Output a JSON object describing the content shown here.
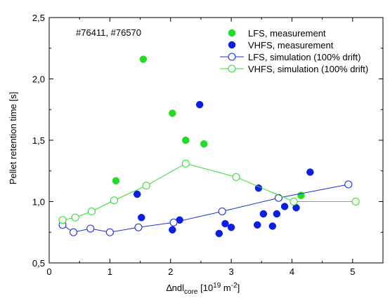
{
  "chart_data": {
    "type": "scatter",
    "annotation": "#76411, #76570",
    "xlabel": {
      "prefix": "∆ndl",
      "sub": "core",
      "mid": " [10",
      "sup1": "19",
      "mid2": " m",
      "sup2": "-2",
      "suffix": "]"
    },
    "ylabel": "Pellet retention time [s]",
    "xlim": [
      0,
      5.5
    ],
    "ylim": [
      0.5,
      2.5
    ],
    "xticks": [
      {
        "v": 0,
        "label": "0"
      },
      {
        "v": 1,
        "label": "1"
      },
      {
        "v": 2,
        "label": "2"
      },
      {
        "v": 3,
        "label": "3"
      },
      {
        "v": 4,
        "label": "4"
      },
      {
        "v": 5,
        "label": "5"
      }
    ],
    "yticks": [
      {
        "v": 0.5,
        "label": "0,5"
      },
      {
        "v": 1.0,
        "label": "1,0"
      },
      {
        "v": 1.5,
        "label": "1,5"
      },
      {
        "v": 2.0,
        "label": "2,0"
      },
      {
        "v": 2.5,
        "label": "2,5"
      }
    ],
    "legend_position": "top-right",
    "series": [
      {
        "name": "LFS, measurement",
        "kind": "filled",
        "color": "#22dd22",
        "points": [
          [
            1.1,
            1.17
          ],
          [
            1.55,
            2.16
          ],
          [
            2.03,
            1.72
          ],
          [
            2.25,
            1.5
          ],
          [
            2.55,
            1.47
          ],
          [
            4.15,
            1.05
          ]
        ]
      },
      {
        "name": "VHFS, measurement",
        "kind": "filled",
        "color": "#0a1ee6",
        "points": [
          [
            1.45,
            1.06
          ],
          [
            1.52,
            0.87
          ],
          [
            2.03,
            0.77
          ],
          [
            2.15,
            0.85
          ],
          [
            2.48,
            1.79
          ],
          [
            2.8,
            0.74
          ],
          [
            2.9,
            0.82
          ],
          [
            3.0,
            0.79
          ],
          [
            3.43,
            0.81
          ],
          [
            3.45,
            1.11
          ],
          [
            3.53,
            0.9
          ],
          [
            3.68,
            0.8
          ],
          [
            3.75,
            0.9
          ],
          [
            3.88,
            0.96
          ],
          [
            4.07,
            0.95
          ],
          [
            4.3,
            1.24
          ]
        ]
      },
      {
        "name": "LFS, simulation (100% drift)",
        "kind": "open-line",
        "color": "#1a2edd",
        "points": [
          [
            0.22,
            0.81
          ],
          [
            0.4,
            0.75
          ],
          [
            0.68,
            0.78
          ],
          [
            1.0,
            0.75
          ],
          [
            1.47,
            0.79
          ],
          [
            2.05,
            0.83
          ],
          [
            2.85,
            0.92
          ],
          [
            3.78,
            1.03
          ],
          [
            4.93,
            1.14
          ]
        ]
      },
      {
        "name": "VHFS, simulation (100% drift)",
        "kind": "open-line",
        "color": "#33dd33",
        "points": [
          [
            0.22,
            0.85
          ],
          [
            0.43,
            0.87
          ],
          [
            0.7,
            0.92
          ],
          [
            1.07,
            1.01
          ],
          [
            1.6,
            1.13
          ],
          [
            2.25,
            1.31
          ],
          [
            3.08,
            1.2
          ],
          [
            4.03,
            1.0
          ],
          [
            5.05,
            1.0
          ]
        ]
      }
    ]
  }
}
